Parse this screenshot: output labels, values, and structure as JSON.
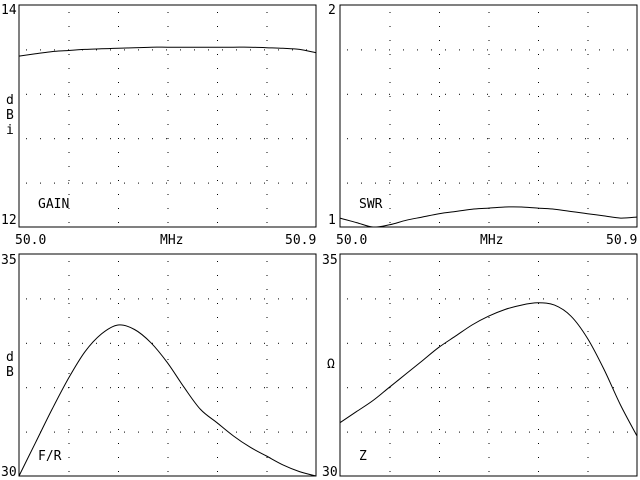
{
  "chart_data": [
    {
      "type": "line",
      "id": "gain",
      "label": "GAIN",
      "y_unit_chars": [
        "d",
        "B",
        "i"
      ],
      "xlabel": "MHz",
      "x_tick_labels": [
        "50.0",
        "50.9"
      ],
      "y_tick_labels": [
        "14",
        "12"
      ],
      "xlim": [
        50.0,
        50.9
      ],
      "ylim": [
        12,
        14
      ],
      "grid": true,
      "series": [
        {
          "x": [
            50.0,
            50.05,
            50.1,
            50.15,
            50.2,
            50.25,
            50.3,
            50.35,
            50.4,
            50.45,
            50.5,
            50.55,
            50.6,
            50.65,
            50.7,
            50.75,
            50.8,
            50.85,
            50.9
          ],
          "values": [
            13.54,
            13.56,
            13.58,
            13.59,
            13.6,
            13.605,
            13.61,
            13.615,
            13.62,
            13.62,
            13.62,
            13.62,
            13.62,
            13.62,
            13.62,
            13.615,
            13.61,
            13.6,
            13.57
          ]
        }
      ]
    },
    {
      "type": "line",
      "id": "swr",
      "label": "SWR",
      "y_unit_chars": [],
      "xlabel": "MHz",
      "x_tick_labels": [
        "50.0",
        "50.9"
      ],
      "y_tick_labels": [
        "2",
        "1"
      ],
      "xlim": [
        50.0,
        50.9
      ],
      "ylim": [
        1,
        2
      ],
      "grid": true,
      "series": [
        {
          "x": [
            50.0,
            50.05,
            50.1,
            50.15,
            50.2,
            50.25,
            50.3,
            50.35,
            50.4,
            50.45,
            50.5,
            50.55,
            50.6,
            50.65,
            50.7,
            50.75,
            50.8,
            50.85,
            50.9
          ],
          "values": [
            1.04,
            1.02,
            1.0,
            1.01,
            1.03,
            1.045,
            1.06,
            1.07,
            1.08,
            1.085,
            1.09,
            1.09,
            1.085,
            1.08,
            1.07,
            1.06,
            1.05,
            1.04,
            1.045
          ]
        }
      ]
    },
    {
      "type": "line",
      "id": "fr",
      "label": "F/R",
      "y_unit_chars": [
        "d",
        "B"
      ],
      "xlabel": "",
      "x_tick_labels": [],
      "y_tick_labels": [
        "35",
        "30"
      ],
      "xlim": [
        50.0,
        50.9
      ],
      "ylim": [
        30,
        35
      ],
      "grid": true,
      "series": [
        {
          "x": [
            50.0,
            50.05,
            50.1,
            50.15,
            50.2,
            50.25,
            50.3,
            50.35,
            50.4,
            50.45,
            50.5,
            50.55,
            50.6,
            50.65,
            50.7,
            50.75,
            50.8,
            50.85,
            50.9
          ],
          "values": [
            30.0,
            30.75,
            31.5,
            32.2,
            32.8,
            33.2,
            33.4,
            33.3,
            33.0,
            32.55,
            32.0,
            31.5,
            31.2,
            30.9,
            30.65,
            30.45,
            30.25,
            30.1,
            30.0
          ]
        }
      ]
    },
    {
      "type": "line",
      "id": "z",
      "label": "Z",
      "y_unit_chars": [
        "Ω"
      ],
      "xlabel": "",
      "x_tick_labels": [],
      "y_tick_labels": [
        "35",
        "30"
      ],
      "xlim": [
        50.0,
        50.9
      ],
      "ylim": [
        30,
        35
      ],
      "grid": true,
      "series": [
        {
          "x": [
            50.0,
            50.05,
            50.1,
            50.15,
            50.2,
            50.25,
            50.3,
            50.35,
            50.4,
            50.45,
            50.5,
            50.55,
            50.6,
            50.65,
            50.7,
            50.75,
            50.8,
            50.85,
            50.9
          ],
          "values": [
            31.2,
            31.45,
            31.7,
            32.0,
            32.3,
            32.6,
            32.9,
            33.15,
            33.4,
            33.6,
            33.75,
            33.85,
            33.9,
            33.85,
            33.6,
            33.1,
            32.4,
            31.6,
            30.9
          ]
        }
      ]
    }
  ]
}
